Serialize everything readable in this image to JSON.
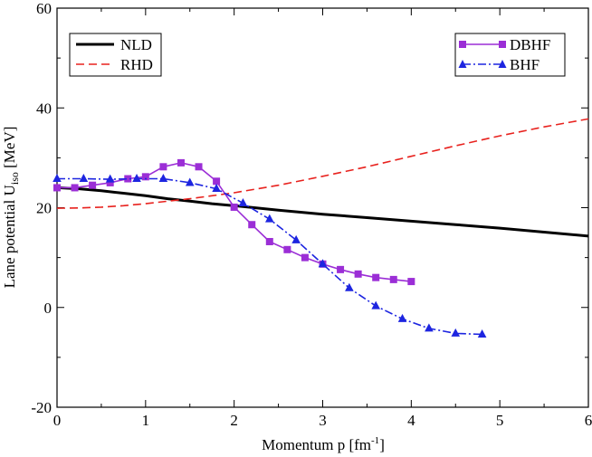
{
  "chart_data": {
    "type": "line",
    "xlabel": {
      "main": "Momentum p [fm",
      "sup": "-1",
      "end": "]"
    },
    "ylabel": {
      "main": "Lane potential U",
      "sub": "iso",
      "end": " [MeV]"
    },
    "xlim": [
      0,
      6
    ],
    "ylim": [
      -20,
      60
    ],
    "xticks": [
      0,
      1,
      2,
      3,
      4,
      5,
      6
    ],
    "yticks": [
      -20,
      0,
      20,
      40,
      60
    ],
    "x_tick_labels": [
      "0",
      "1",
      "2",
      "3",
      "4",
      "5",
      "6"
    ],
    "y_tick_labels": [
      "-20",
      "0",
      "20",
      "40",
      "60"
    ],
    "grid": false,
    "legends": {
      "left": {
        "placement": "top-left",
        "entries": [
          "NLD",
          "RHD"
        ]
      },
      "right": {
        "placement": "top-right",
        "entries": [
          "DBHF",
          "BHF"
        ]
      }
    },
    "series": [
      {
        "name": "NLD",
        "color": "#000000",
        "style": "solid-thick",
        "marker": "none",
        "x": [
          0,
          0.25,
          0.5,
          0.75,
          1.0,
          1.25,
          1.5,
          1.75,
          2.0,
          2.5,
          3.0,
          3.5,
          4.0,
          4.5,
          5.0,
          5.5,
          6.0
        ],
        "y": [
          24.0,
          23.8,
          23.4,
          22.9,
          22.4,
          21.8,
          21.3,
          20.8,
          20.4,
          19.5,
          18.7,
          18.0,
          17.3,
          16.6,
          15.9,
          15.1,
          14.3
        ]
      },
      {
        "name": "RHD",
        "color": "#e8221e",
        "style": "dashed",
        "marker": "none",
        "x": [
          0,
          0.25,
          0.5,
          0.75,
          1.0,
          1.25,
          1.5,
          1.75,
          2.0,
          2.5,
          3.0,
          3.5,
          4.0,
          4.5,
          5.0,
          5.5,
          6.0
        ],
        "y": [
          19.9,
          19.95,
          20.1,
          20.4,
          20.8,
          21.3,
          21.8,
          22.4,
          23.0,
          24.5,
          26.3,
          28.2,
          30.3,
          32.4,
          34.4,
          36.2,
          37.8
        ]
      },
      {
        "name": "DBHF",
        "color": "#9b2ed6",
        "style": "solid",
        "marker": "square",
        "x": [
          0.0,
          0.2,
          0.4,
          0.6,
          0.8,
          1.0,
          1.2,
          1.4,
          1.6,
          1.8,
          2.0,
          2.2,
          2.4,
          2.6,
          2.8,
          3.0,
          3.2,
          3.4,
          3.6,
          3.8,
          4.0
        ],
        "y": [
          24.0,
          24.0,
          24.5,
          25.0,
          25.8,
          26.2,
          28.2,
          29.0,
          28.2,
          25.3,
          20.1,
          16.6,
          13.2,
          11.6,
          10.0,
          8.7,
          7.6,
          6.7,
          6.0,
          5.6,
          5.2
        ]
      },
      {
        "name": "BHF",
        "color": "#1d25e0",
        "style": "dash-dot",
        "marker": "triangle",
        "x": [
          0.0,
          0.3,
          0.6,
          0.9,
          1.2,
          1.5,
          1.8,
          2.1,
          2.4,
          2.7,
          3.0,
          3.3,
          3.6,
          3.9,
          4.2,
          4.5,
          4.8
        ],
        "y": [
          25.8,
          25.8,
          25.7,
          25.8,
          25.8,
          25.0,
          23.8,
          20.9,
          17.7,
          13.5,
          8.7,
          3.9,
          0.3,
          -2.3,
          -4.2,
          -5.2,
          -5.4
        ]
      }
    ]
  }
}
